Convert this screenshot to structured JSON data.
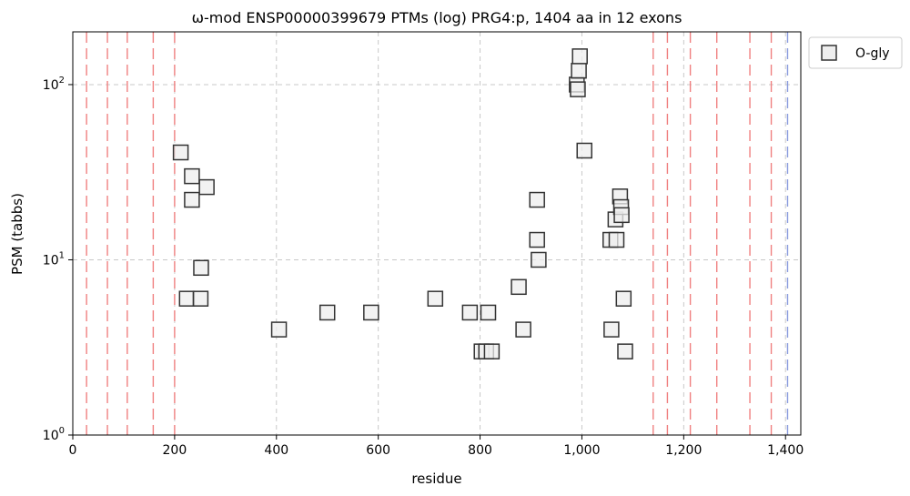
{
  "chart_data": {
    "type": "scatter",
    "title": "ω-mod ENSP00000399679 PTMs (log) PRG4:p, 1404 aa in 12 exons",
    "xlabel": "residue",
    "ylabel": "PSM (tabbs)",
    "xlim": [
      0,
      1430
    ],
    "ylim": [
      1,
      200
    ],
    "yscale": "log",
    "x_ticks": [
      0,
      200,
      400,
      600,
      800,
      1000,
      1200,
      1400
    ],
    "x_tick_labels": [
      "0",
      "200",
      "400",
      "600",
      "800",
      "1,000",
      "1,200",
      "1,400"
    ],
    "y_ticks": [
      1,
      10,
      100
    ],
    "y_tick_labels": [
      {
        "base": "10",
        "exp": "0"
      },
      {
        "base": "10",
        "exp": "1"
      },
      {
        "base": "10",
        "exp": "2"
      }
    ],
    "grid": true,
    "legend_position": "outside-top-right",
    "exon_boundaries": [
      27,
      68,
      107,
      158,
      200,
      1140,
      1168,
      1213,
      1265,
      1330,
      1372
    ],
    "protein_end": 1404,
    "colors": {
      "exon_line": "#f08080",
      "end_line": "#8899dd",
      "grid": "#c8c8c8",
      "marker_edge": "#333333",
      "marker_fill": "#eeeeee"
    },
    "series": [
      {
        "name": "O-gly",
        "marker": "square",
        "points": [
          {
            "x": 212,
            "y": 41
          },
          {
            "x": 234,
            "y": 30
          },
          {
            "x": 234,
            "y": 22
          },
          {
            "x": 263,
            "y": 26
          },
          {
            "x": 252,
            "y": 9
          },
          {
            "x": 224,
            "y": 6
          },
          {
            "x": 251,
            "y": 6
          },
          {
            "x": 405,
            "y": 4
          },
          {
            "x": 500,
            "y": 5
          },
          {
            "x": 586,
            "y": 5
          },
          {
            "x": 712,
            "y": 6
          },
          {
            "x": 780,
            "y": 5
          },
          {
            "x": 803,
            "y": 3
          },
          {
            "x": 812,
            "y": 3
          },
          {
            "x": 816,
            "y": 5
          },
          {
            "x": 823,
            "y": 3
          },
          {
            "x": 876,
            "y": 7
          },
          {
            "x": 885,
            "y": 4
          },
          {
            "x": 912,
            "y": 22
          },
          {
            "x": 912,
            "y": 13
          },
          {
            "x": 915,
            "y": 10
          },
          {
            "x": 990,
            "y": 100
          },
          {
            "x": 992,
            "y": 94
          },
          {
            "x": 994,
            "y": 120
          },
          {
            "x": 996,
            "y": 145
          },
          {
            "x": 1005,
            "y": 42
          },
          {
            "x": 1056,
            "y": 13
          },
          {
            "x": 1058,
            "y": 4
          },
          {
            "x": 1066,
            "y": 17
          },
          {
            "x": 1068,
            "y": 13
          },
          {
            "x": 1075,
            "y": 23
          },
          {
            "x": 1077,
            "y": 20
          },
          {
            "x": 1078,
            "y": 18
          },
          {
            "x": 1082,
            "y": 6
          },
          {
            "x": 1085,
            "y": 3
          }
        ]
      }
    ]
  }
}
